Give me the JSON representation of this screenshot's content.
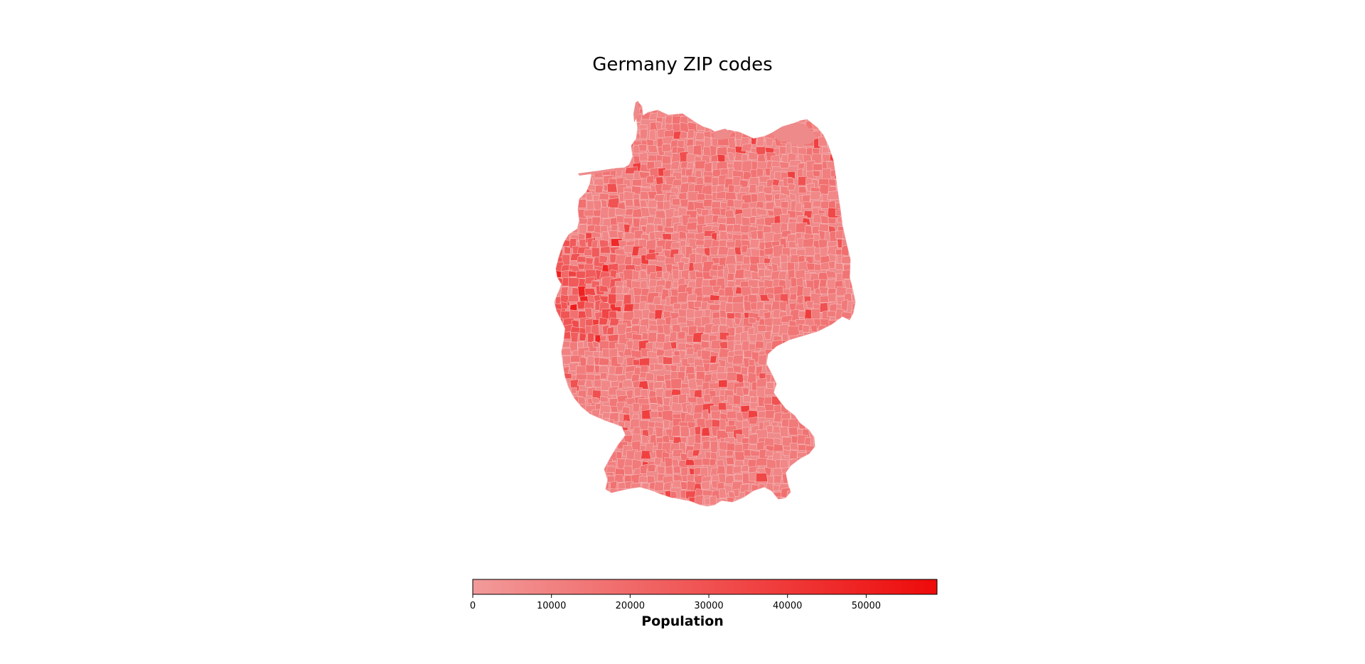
{
  "title": "Germany ZIP codes",
  "colorbar": {
    "label": "Population",
    "min": 0,
    "max": 59000,
    "ticks": [
      0,
      10000,
      20000,
      30000,
      40000,
      50000
    ],
    "tick_labels": [
      "0",
      "10000",
      "20000",
      "30000",
      "40000",
      "50000"
    ],
    "color_low": "#f29a9a",
    "color_high": "#ee0a0a"
  },
  "map": {
    "region": "Germany",
    "unit": "ZIP code areas",
    "fill_palette": "light red to red",
    "border_color": "#f8c8c8"
  }
}
